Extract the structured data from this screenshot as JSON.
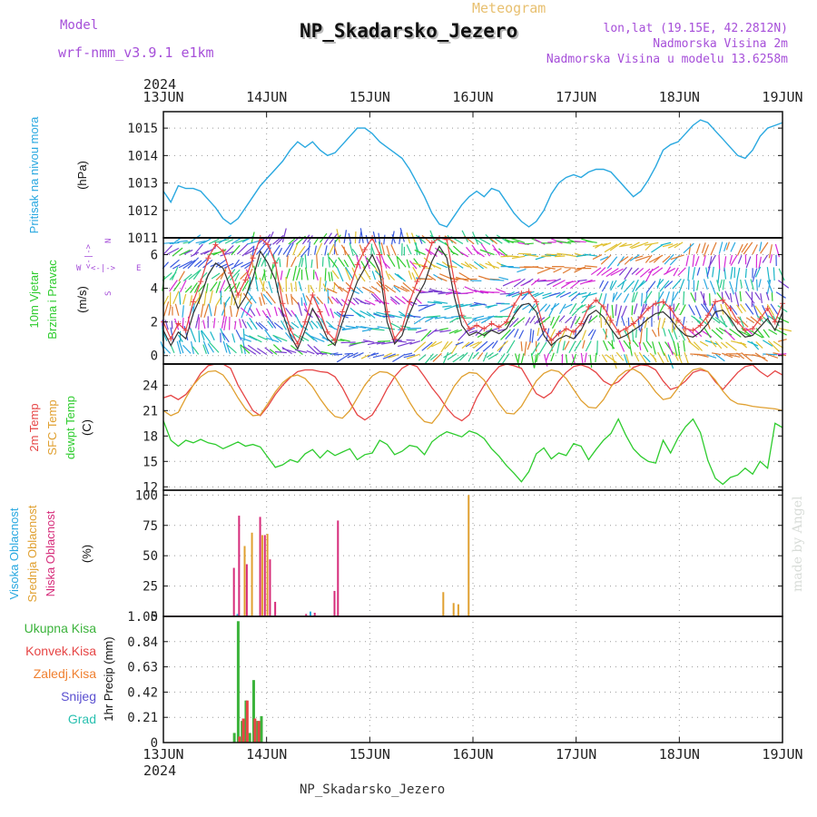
{
  "header": {
    "model_label": "Model",
    "model_value": "wrf-nmm_v3.9.1  e1km",
    "meteogram_label": "Meteogram",
    "station": "NP_Skadarsko_Jezero",
    "lonlat": "lon,lat (19.15E, 42.2812N)",
    "elevation": "Nadmorska Visina 2m",
    "model_elevation": "Nadmorska Visina u modelu 13.6258m",
    "year_top": "2024",
    "year_bottom": "2024",
    "footer_station": "NP_Skadarsko_Jezero",
    "credit": "made by Angel"
  },
  "colors": {
    "pressure": "#29a8e0",
    "temp2m": "#e64545",
    "sfc": "#e0a030",
    "dewpt": "#2ecc2e",
    "wind": "#333333",
    "gust": "#e64545",
    "cloud_high": "#29a8e0",
    "cloud_mid": "#e0a030",
    "cloud_low": "#d62b7a",
    "precip_total": "#3bb33b",
    "precip_conv": "#e64545",
    "precip_frozen": "#f08030",
    "precip_snow": "#5a4fd0",
    "precip_hail": "#29c0b0",
    "purple_text": "#a64fd9"
  },
  "chart_data": [
    {
      "id": "pressure",
      "type": "line",
      "ylabel_main": "Pritisak na nivou mora",
      "ylabel_unit": "(hPa)",
      "x_ticks": [
        "13JUN",
        "14JUN",
        "15JUN",
        "16JUN",
        "17JUN",
        "18JUN",
        "19JUN"
      ],
      "yticks": [
        1011,
        1012,
        1013,
        1014,
        1015
      ],
      "ylim": [
        1011,
        1015.6
      ],
      "series": [
        {
          "values": [
            1012.7,
            1012.3,
            1012.9,
            1012.8,
            1012.8,
            1012.7,
            1012.4,
            1012.1,
            1011.7,
            1011.5,
            1011.7,
            1012.1,
            1012.5,
            1012.9,
            1013.2,
            1013.5,
            1013.8,
            1014.2,
            1014.5,
            1014.3,
            1014.5,
            1014.2,
            1014.0,
            1014.1,
            1014.4,
            1014.7,
            1015.0,
            1015.0,
            1014.8,
            1014.5,
            1014.3,
            1014.1,
            1013.9,
            1013.5,
            1013.0,
            1012.5,
            1011.9,
            1011.5,
            1011.4,
            1011.8,
            1012.2,
            1012.5,
            1012.7,
            1012.5,
            1012.8,
            1012.7,
            1012.3,
            1011.9,
            1011.6,
            1011.4,
            1011.6,
            1012.0,
            1012.6,
            1013.0,
            1013.2,
            1013.3,
            1013.2,
            1013.4,
            1013.5,
            1013.5,
            1013.4,
            1013.1,
            1012.8,
            1012.5,
            1012.7,
            1013.1,
            1013.6,
            1014.2,
            1014.4,
            1014.5,
            1014.8,
            1015.1,
            1015.3,
            1015.2,
            1014.9,
            1014.6,
            1014.3,
            1014.0,
            1013.9,
            1014.2,
            1014.7,
            1015.0,
            1015.1,
            1015.2
          ]
        }
      ]
    },
    {
      "id": "wind",
      "type": "line",
      "ylabel_main": "10m Vjetar",
      "ylabel_sub": "Brzina i Pravac",
      "ylabel_unit": "(m/s)",
      "compass": [
        "N",
        "E",
        "S",
        "W",
        "<",
        "|",
        "-",
        ">",
        "^"
      ],
      "yticks": [
        0,
        2,
        4,
        6
      ],
      "ylim": [
        -0.5,
        7
      ],
      "series": [
        {
          "name": "speed",
          "values": [
            1.5,
            0.6,
            1.4,
            1.0,
            2.5,
            3.5,
            4.8,
            5.5,
            5.2,
            4.0,
            2.8,
            3.5,
            4.6,
            6.2,
            5.5,
            4.5,
            2.5,
            1.2,
            0.4,
            1.5,
            2.8,
            2.0,
            1.0,
            0.6,
            2.0,
            3.2,
            4.4,
            5.2,
            6.0,
            5.0,
            2.0,
            0.7,
            1.2,
            2.5,
            3.5,
            4.3,
            5.6,
            6.5,
            5.8,
            3.5,
            1.8,
            1.2,
            1.4,
            1.2,
            1.5,
            1.3,
            1.6,
            2.4,
            3.0,
            3.1,
            2.6,
            1.2,
            0.6,
            1.0,
            1.2,
            1.0,
            1.5,
            2.4,
            2.7,
            2.3,
            1.6,
            1.0,
            1.2,
            1.5,
            1.8,
            2.2,
            2.5,
            2.6,
            2.2,
            1.6,
            1.2,
            1.1,
            1.4,
            1.9,
            2.6,
            2.7,
            2.2,
            1.5,
            1.1,
            1.2,
            1.7,
            2.2,
            1.5,
            2.6
          ]
        },
        {
          "name": "gust",
          "values": [
            2.0,
            1.0,
            1.9,
            1.5,
            3.2,
            4.4,
            5.8,
            6.6,
            6.2,
            4.9,
            3.6,
            4.5,
            5.8,
            7.0,
            6.6,
            5.5,
            3.1,
            1.6,
            0.7,
            2.0,
            3.6,
            2.6,
            1.4,
            0.9,
            2.6,
            4.0,
            5.4,
            6.3,
            7.0,
            6.0,
            2.6,
            1.0,
            1.6,
            3.2,
            4.4,
            5.3,
            6.7,
            7.0,
            6.9,
            4.4,
            2.4,
            1.6,
            1.8,
            1.6,
            1.9,
            1.7,
            2.0,
            3.0,
            3.7,
            3.8,
            3.2,
            1.6,
            0.9,
            1.3,
            1.6,
            1.4,
            1.9,
            2.9,
            3.3,
            2.9,
            2.1,
            1.4,
            1.6,
            1.9,
            2.3,
            2.8,
            3.1,
            3.2,
            2.8,
            2.1,
            1.6,
            1.5,
            1.8,
            2.4,
            3.2,
            3.3,
            2.8,
            2.0,
            1.5,
            1.6,
            2.2,
            2.8,
            2.0,
            3.1
          ]
        }
      ]
    },
    {
      "id": "temperature",
      "type": "line",
      "ylabel_lines": [
        "2m Temp",
        "SFC Temp",
        "dewpt Temp"
      ],
      "ylabel_unit": "(C)",
      "yticks": [
        12,
        15,
        18,
        21,
        24
      ],
      "ylim": [
        11.6,
        26.5
      ],
      "series": [
        {
          "name": "2m Temp",
          "values": [
            22.5,
            22.8,
            22.3,
            22.9,
            24.0,
            25.4,
            26.3,
            26.5,
            26.5,
            26.0,
            24.0,
            22.5,
            21.0,
            20.4,
            21.5,
            22.9,
            24.0,
            24.9,
            25.6,
            25.8,
            25.8,
            25.6,
            25.5,
            25.0,
            23.7,
            22.0,
            20.5,
            19.9,
            20.5,
            21.9,
            23.6,
            25.0,
            26.0,
            26.5,
            26.2,
            25.0,
            23.7,
            22.6,
            21.3,
            20.3,
            19.8,
            20.5,
            22.5,
            24.0,
            25.2,
            26.2,
            26.5,
            26.3,
            26.0,
            24.5,
            23.0,
            22.5,
            23.1,
            24.5,
            25.5,
            26.2,
            26.4,
            26.1,
            25.5,
            24.5,
            24.0,
            24.4,
            25.3,
            26.1,
            26.4,
            26.3,
            25.8,
            24.5,
            23.5,
            23.8,
            24.5,
            25.5,
            25.8,
            25.6,
            24.4,
            23.5,
            24.5,
            25.5,
            26.2,
            26.4,
            25.6,
            25.0,
            25.7,
            25.2
          ]
        },
        {
          "name": "SFC Temp",
          "values": [
            21.0,
            20.4,
            20.8,
            22.5,
            24.0,
            25.0,
            25.6,
            25.7,
            25.2,
            24.0,
            22.5,
            21.2,
            20.4,
            20.5,
            21.8,
            23.2,
            24.3,
            25.0,
            25.2,
            24.8,
            23.8,
            22.4,
            21.2,
            20.3,
            20.1,
            21.0,
            22.5,
            24.0,
            25.1,
            25.6,
            25.5,
            25.0,
            23.6,
            22.0,
            20.6,
            19.7,
            19.5,
            20.6,
            22.3,
            23.9,
            25.0,
            25.5,
            25.4,
            24.6,
            23.2,
            21.8,
            20.7,
            20.6,
            21.5,
            23.0,
            24.5,
            25.4,
            25.8,
            25.6,
            24.8,
            23.5,
            22.2,
            21.4,
            21.3,
            22.3,
            23.8,
            25.0,
            25.7,
            25.9,
            25.4,
            24.4,
            23.2,
            22.3,
            22.5,
            23.7,
            25.0,
            25.8,
            26.0,
            25.6,
            24.6,
            23.3,
            22.3,
            21.8,
            21.7,
            21.5,
            21.4,
            21.3,
            21.2,
            21.0
          ]
        },
        {
          "name": "dewpt Temp",
          "values": [
            19.8,
            17.5,
            16.8,
            17.5,
            17.2,
            17.6,
            17.2,
            17.0,
            16.5,
            16.9,
            17.3,
            16.8,
            17.0,
            16.7,
            15.5,
            14.3,
            14.6,
            15.2,
            14.9,
            15.9,
            16.4,
            15.4,
            16.3,
            15.7,
            16.1,
            16.5,
            15.2,
            15.8,
            16.0,
            17.5,
            17.0,
            15.8,
            16.2,
            16.9,
            16.7,
            15.8,
            17.3,
            18.0,
            18.5,
            18.2,
            17.9,
            18.6,
            18.3,
            17.7,
            16.5,
            15.6,
            14.5,
            13.6,
            12.6,
            13.8,
            15.9,
            16.6,
            15.3,
            16.0,
            15.7,
            17.1,
            16.8,
            15.2,
            16.4,
            17.5,
            18.3,
            20.0,
            18.1,
            16.5,
            15.6,
            15.0,
            14.8,
            17.5,
            16.0,
            17.8,
            19.1,
            20.0,
            18.4,
            15.1,
            13.0,
            12.3,
            13.1,
            13.4,
            14.2,
            13.5,
            15.0,
            14.2,
            19.5,
            19.0
          ]
        }
      ]
    },
    {
      "id": "clouds",
      "type": "bar",
      "ylabel_lines": [
        "Visoka Oblacnost",
        "Srednja Oblacnost",
        "Niska Oblacnost"
      ],
      "ylabel_unit": "(%)",
      "yticks": [
        0,
        25,
        50,
        75,
        100
      ],
      "ylim": [
        0,
        104
      ],
      "series": [
        {
          "name": "Visoka Oblacnost",
          "bars": [
            {
              "x": 17.2,
              "v": 2
            },
            {
              "x": 34.2,
              "v": 4
            }
          ]
        },
        {
          "name": "Srednja Oblacnost",
          "bars": [
            {
              "x": 18.9,
              "v": 58
            },
            {
              "x": 20.6,
              "v": 69
            },
            {
              "x": 23.0,
              "v": 67
            },
            {
              "x": 24.2,
              "v": 68
            },
            {
              "x": 65.1,
              "v": 20
            },
            {
              "x": 67.5,
              "v": 11
            },
            {
              "x": 68.6,
              "v": 10
            },
            {
              "x": 71.0,
              "v": 100
            }
          ]
        },
        {
          "name": "Niska Oblacnost",
          "bars": [
            {
              "x": 16.4,
              "v": 40
            },
            {
              "x": 17.6,
              "v": 83
            },
            {
              "x": 19.4,
              "v": 43
            },
            {
              "x": 22.5,
              "v": 82
            },
            {
              "x": 23.6,
              "v": 67
            },
            {
              "x": 24.8,
              "v": 47
            },
            {
              "x": 26.0,
              "v": 12
            },
            {
              "x": 33.2,
              "v": 2
            },
            {
              "x": 35.2,
              "v": 3
            },
            {
              "x": 39.8,
              "v": 21
            },
            {
              "x": 40.6,
              "v": 79
            }
          ]
        }
      ]
    },
    {
      "id": "precip",
      "type": "bar",
      "ylabel_lines": [
        "Ukupna Kisa",
        "Konvek.Kisa",
        "Zaledj.Kisa",
        "Snijeg",
        "Grad"
      ],
      "ylabel_unit": "1hr Precip (mm)",
      "yticks": [
        0,
        0.21,
        0.42,
        0.63,
        0.84,
        1.05
      ],
      "ylim": [
        0,
        1.05
      ],
      "series": [
        {
          "name": "Ukupna Kisa",
          "bars": [
            {
              "x": 16.5,
              "v": 0.08
            },
            {
              "x": 17.4,
              "v": 1.01
            },
            {
              "x": 18.3,
              "v": 0.18
            },
            {
              "x": 19.2,
              "v": 0.35
            },
            {
              "x": 20.1,
              "v": 0.08
            },
            {
              "x": 21.0,
              "v": 0.52
            },
            {
              "x": 21.9,
              "v": 0.18
            },
            {
              "x": 22.8,
              "v": 0.22
            }
          ]
        },
        {
          "name": "Konvek.Kisa",
          "bars": [
            {
              "x": 17.7,
              "v": 0.05
            },
            {
              "x": 18.6,
              "v": 0.2
            },
            {
              "x": 19.5,
              "v": 0.35
            },
            {
              "x": 21.3,
              "v": 0.2
            },
            {
              "x": 22.2,
              "v": 0.18
            }
          ]
        }
      ]
    }
  ]
}
